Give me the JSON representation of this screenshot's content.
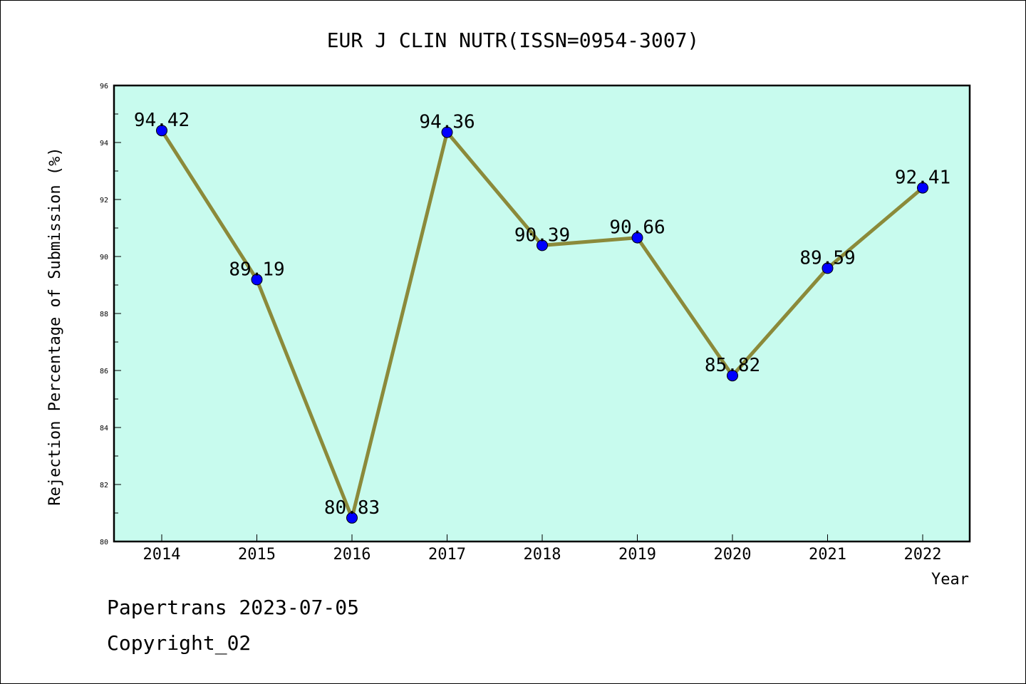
{
  "chart_data": {
    "type": "line",
    "title": "EUR J CLIN NUTR(ISSN=0954-3007)",
    "xlabel": "Year",
    "ylabel": "Rejection Percentage of Submission (%)",
    "categories": [
      "2014",
      "2015",
      "2016",
      "2017",
      "2018",
      "2019",
      "2020",
      "2021",
      "2022"
    ],
    "series": [
      {
        "values": [
          94.42,
          89.19,
          80.83,
          94.36,
          90.39,
          90.66,
          85.82,
          89.59,
          92.41
        ],
        "labels": [
          "94.42",
          "89.19",
          "80.83",
          "94.36",
          "90.39",
          "90.66",
          "85.82",
          "89.59",
          "92.41"
        ]
      }
    ],
    "ylim": [
      80,
      96
    ],
    "yticks": [
      "80",
      "82",
      "84",
      "86",
      "88",
      "90",
      "92",
      "94",
      "96"
    ],
    "grid": false,
    "legend": "none",
    "colors": {
      "plot_background": "#c8fbee",
      "line": "#8b8a3a",
      "marker": "#0000ff",
      "axes": "#000000"
    }
  },
  "footer": {
    "line1": "Papertrans 2023-07-05",
    "line2": "Copyright_02"
  }
}
